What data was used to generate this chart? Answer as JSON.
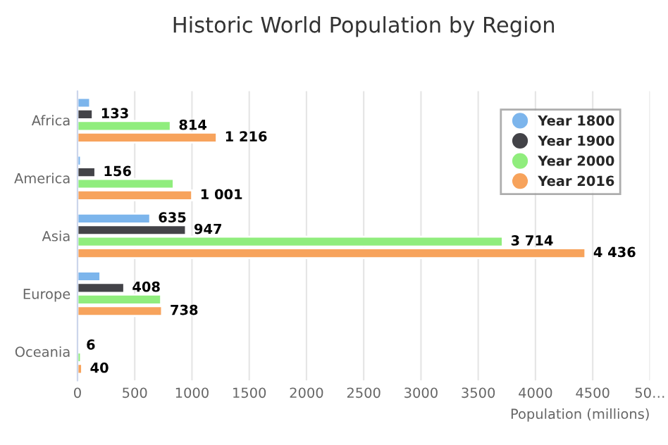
{
  "chart_data": {
    "type": "bar",
    "orientation": "horizontal",
    "title": "Historic World Population by Region",
    "xlabel": "Population (millions)",
    "categories": [
      "Africa",
      "America",
      "Asia",
      "Europe",
      "Oceania"
    ],
    "series": [
      {
        "name": "Year 1800",
        "color": "#7cb5ec",
        "values": [
          110,
          30,
          635,
          200,
          null
        ],
        "value_labels": [
          null,
          null,
          "635",
          null,
          null
        ]
      },
      {
        "name": "Year 1900",
        "color": "#434348",
        "values": [
          133,
          156,
          947,
          408,
          6
        ],
        "value_labels": [
          "133",
          "156",
          "947",
          "408",
          "6"
        ]
      },
      {
        "name": "Year 2000",
        "color": "#90ed7d",
        "values": [
          814,
          840,
          3714,
          730,
          30
        ],
        "value_labels": [
          "814",
          null,
          "3 714",
          null,
          null
        ]
      },
      {
        "name": "Year 2016",
        "color": "#f7a35c",
        "values": [
          1216,
          1001,
          4436,
          738,
          40
        ],
        "value_labels": [
          "1 216",
          "1 001",
          "4 436",
          "738",
          "40"
        ]
      }
    ],
    "xlim": [
      0,
      5000
    ],
    "xticks": [
      0,
      500,
      1000,
      1500,
      2000,
      2500,
      3000,
      3500,
      4000,
      4500,
      {
        "value": 5000,
        "label": "50…"
      }
    ],
    "grid": "x",
    "legend": "top right"
  }
}
